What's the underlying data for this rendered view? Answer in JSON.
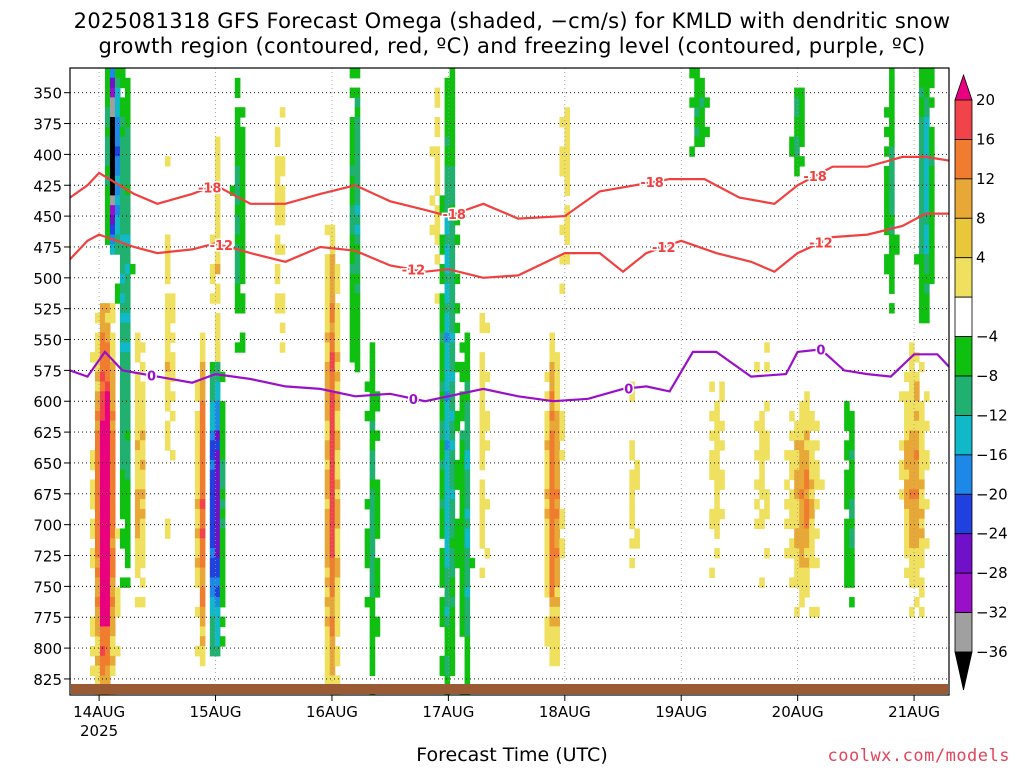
{
  "title_line1": "2025081318 GFS Forecast Omega (shaded, −cm/s) for KMLD with dendritic snow",
  "title_line2": "growth region (contoured, red, ºC) and freezing level (contoured, purple, ºC)",
  "credit": "coolwx.com/models",
  "chart_data": {
    "type": "heatmap",
    "xlabel": "Forecast Time (UTC)",
    "x_ticks": [
      "14AUG",
      "15AUG",
      "16AUG",
      "17AUG",
      "18AUG",
      "19AUG",
      "20AUG",
      "21AUG"
    ],
    "x_year_label": "2025",
    "y_ticks": [
      350,
      375,
      400,
      425,
      450,
      475,
      500,
      525,
      550,
      575,
      600,
      625,
      650,
      675,
      700,
      725,
      750,
      775,
      800,
      825
    ],
    "y_range_hpa": [
      330,
      838
    ],
    "x_range_days": [
      -0.25,
      7.3
    ],
    "grid": true,
    "colorbar": {
      "labels": [
        20,
        16,
        12,
        8,
        4,
        -4,
        -8,
        -12,
        -16,
        -20,
        -24,
        -28,
        -32,
        -36
      ],
      "colors": [
        "#e8007e",
        "#f0444a",
        "#f07c30",
        "#e8a838",
        "#e8c83a",
        "#f0e060",
        "#ffffff",
        "#10c010",
        "#20b070",
        "#10b8c8",
        "#1e88e8",
        "#2040e0",
        "#7010c8",
        "#9a10c8",
        "#a0a0a0",
        "#000000"
      ]
    },
    "contour_labels": {
      "dgz_upper": "-18",
      "dgz_lower": "-12",
      "freezing": "0"
    },
    "series": [
      {
        "contour": "-18",
        "x": [
          -0.25,
          -0.1,
          0.0,
          0.3,
          0.5,
          0.8,
          1.0,
          1.3,
          1.6,
          1.9,
          2.2,
          2.5,
          2.8,
          3.0,
          3.3,
          3.6,
          4.0,
          4.3,
          4.6,
          4.9,
          5.2,
          5.5,
          5.8,
          6.0,
          6.3,
          6.6,
          6.9,
          7.1,
          7.3
        ],
        "values": [
          435,
          425,
          415,
          432,
          440,
          432,
          425,
          440,
          440,
          432,
          425,
          438,
          445,
          450,
          440,
          452,
          450,
          430,
          425,
          420,
          420,
          435,
          440,
          425,
          410,
          410,
          402,
          402,
          405
        ]
      },
      {
        "contour": "-12",
        "x": [
          -0.25,
          -0.1,
          0.0,
          0.3,
          0.5,
          0.8,
          1.0,
          1.3,
          1.6,
          1.9,
          2.2,
          2.5,
          2.8,
          3.0,
          3.3,
          3.6,
          4.0,
          4.3,
          4.5,
          4.7,
          5.0,
          5.3,
          5.6,
          5.8,
          6.0,
          6.3,
          6.6,
          6.9,
          7.1,
          7.3
        ],
        "values": [
          485,
          470,
          465,
          475,
          480,
          477,
          472,
          480,
          487,
          475,
          478,
          490,
          495,
          493,
          500,
          498,
          480,
          480,
          495,
          480,
          470,
          480,
          487,
          495,
          480,
          467,
          465,
          458,
          448,
          448
        ]
      },
      {
        "contour": "0",
        "x": [
          -0.25,
          -0.1,
          0.05,
          0.2,
          0.5,
          0.8,
          1.0,
          1.3,
          1.6,
          1.9,
          2.2,
          2.5,
          2.8,
          3.0,
          3.3,
          3.6,
          3.9,
          4.2,
          4.5,
          4.7,
          4.9,
          5.1,
          5.3,
          5.6,
          5.9,
          6.0,
          6.2,
          6.4,
          6.6,
          6.8,
          7.0,
          7.2,
          7.3
        ],
        "values": [
          575,
          580,
          560,
          575,
          580,
          585,
          578,
          582,
          588,
          590,
          596,
          594,
          600,
          596,
          590,
          596,
          600,
          598,
          590,
          588,
          592,
          560,
          560,
          580,
          578,
          560,
          558,
          575,
          578,
          580,
          562,
          562,
          572
        ]
      }
    ]
  }
}
